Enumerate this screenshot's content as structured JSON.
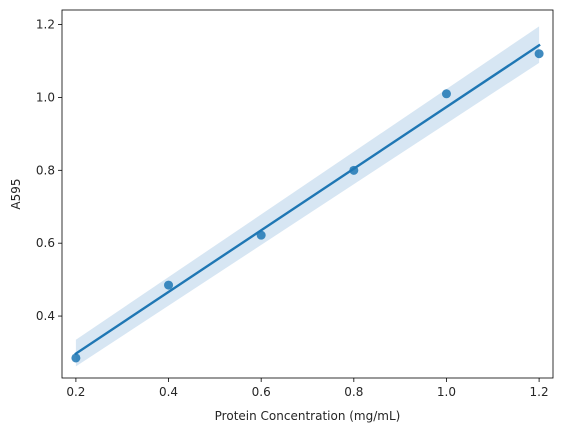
{
  "chart_data": {
    "type": "scatter",
    "title": "",
    "xlabel": "Protein Concentration (mg/mL)",
    "ylabel": "A595",
    "xlim": [
      0.17,
      1.23
    ],
    "ylim": [
      0.23,
      1.24
    ],
    "xticks": [
      0.2,
      0.4,
      0.6,
      0.8,
      1.0,
      1.2
    ],
    "xtick_labels": [
      "0.2",
      "0.4",
      "0.6",
      "0.8",
      "1.0",
      "1.2"
    ],
    "yticks": [
      0.4,
      0.6,
      0.8,
      1.0,
      1.2
    ],
    "ytick_labels": [
      "0.4",
      "0.6",
      "0.8",
      "1.0",
      "1.2"
    ],
    "grid": false,
    "series": [
      {
        "x": [
          0.2,
          0.4,
          0.6,
          0.8,
          1.0,
          1.2
        ],
        "y": [
          0.285,
          0.485,
          0.622,
          0.8,
          1.01,
          1.12
        ],
        "color": "#1f77b4"
      }
    ],
    "regression": {
      "x": [
        0.2,
        1.2
      ],
      "y": [
        0.297,
        1.143
      ],
      "color": "#1f77b4",
      "ci_upper": [
        0.335,
        1.195
      ],
      "ci_lower": [
        0.262,
        1.095
      ],
      "ci_color": "#c9ddef"
    }
  }
}
